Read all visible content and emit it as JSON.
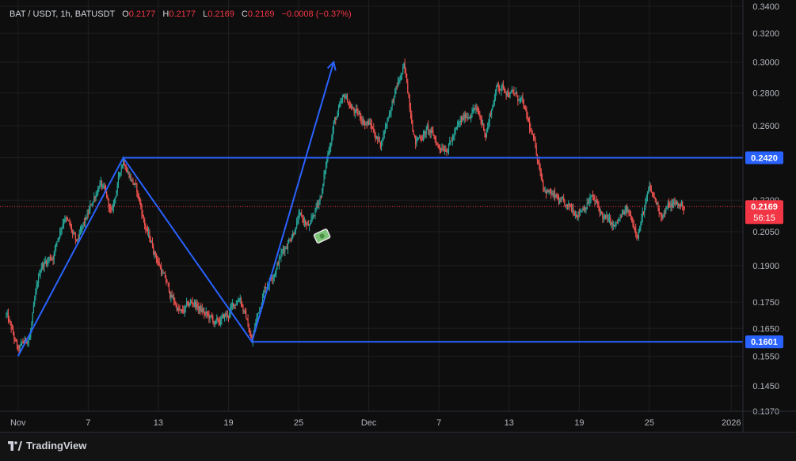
{
  "legend": {
    "symbol": "BAT / USDT, 1h, BATUSDT",
    "open_label": "O",
    "open_value": "0.2177",
    "high_label": "H",
    "high_value": "0.2177",
    "low_label": "L",
    "low_value": "0.2169",
    "close_label": "C",
    "close_value": "0.2169",
    "change": "−0.0008 (−0.37%)"
  },
  "footer": {
    "brand": "TradingView"
  },
  "colors": {
    "up": "#26a69a",
    "down": "#ef5350",
    "drawing": "#2962ff",
    "price_label": "#f23645",
    "level_label": "#2962ff",
    "grid": "#1f1f1f"
  },
  "icons": {
    "annotation": "money-bag-icon",
    "brand": "tradingview-logo-icon"
  },
  "chart_data": {
    "type": "candlestick",
    "interval": "1h",
    "y_scale": "log",
    "ylim": [
      0.137,
      0.34
    ],
    "y_ticks": [
      "0.3400",
      "0.3200",
      "0.3000",
      "0.2800",
      "0.2600",
      "0.2420",
      "0.2200",
      "0.2050",
      "0.1900",
      "0.1750",
      "0.1650",
      "0.1550",
      "0.1450",
      "0.1370"
    ],
    "x_ticks": [
      "Nov",
      "7",
      "13",
      "19",
      "25",
      "Dec",
      "7",
      "13",
      "19",
      "25",
      "2026"
    ],
    "x_tick_dates": [
      "2025-11-01",
      "2025-11-07",
      "2025-11-13",
      "2025-11-19",
      "2025-11-25",
      "2025-12-01",
      "2025-12-07",
      "2025-12-13",
      "2025-12-19",
      "2025-12-25",
      "2026-01-01"
    ],
    "x_range": [
      "2025-10-31",
      "2026-01-02"
    ],
    "series": [
      {
        "name": "BATUSDT"
      }
    ],
    "price_path": [
      [
        "2025-10-31",
        0.17
      ],
      [
        "2025-11-01",
        0.156
      ],
      [
        "2025-11-02",
        0.162
      ],
      [
        "2025-11-03",
        0.19
      ],
      [
        "2025-11-04",
        0.195
      ],
      [
        "2025-11-05",
        0.214
      ],
      [
        "2025-11-06",
        0.198
      ],
      [
        "2025-11-07",
        0.212
      ],
      [
        "2025-11-08",
        0.23
      ],
      [
        "2025-11-09",
        0.212
      ],
      [
        "2025-11-10",
        0.242
      ],
      [
        "2025-11-11",
        0.228
      ],
      [
        "2025-11-12",
        0.205
      ],
      [
        "2025-11-13",
        0.192
      ],
      [
        "2025-11-14",
        0.178
      ],
      [
        "2025-11-15",
        0.17
      ],
      [
        "2025-11-16",
        0.175
      ],
      [
        "2025-11-17",
        0.17
      ],
      [
        "2025-11-18",
        0.166
      ],
      [
        "2025-11-19",
        0.17
      ],
      [
        "2025-11-20",
        0.178
      ],
      [
        "2025-11-21",
        0.16
      ],
      [
        "2025-11-22",
        0.18
      ],
      [
        "2025-11-23",
        0.19
      ],
      [
        "2025-11-24",
        0.2
      ],
      [
        "2025-11-25",
        0.212
      ],
      [
        "2025-11-26",
        0.206
      ],
      [
        "2025-11-27",
        0.225
      ],
      [
        "2025-11-28",
        0.262
      ],
      [
        "2025-11-29",
        0.276
      ],
      [
        "2025-11-30",
        0.266
      ],
      [
        "2025-12-01",
        0.262
      ],
      [
        "2025-12-02",
        0.25
      ],
      [
        "2025-12-03",
        0.275
      ],
      [
        "2025-12-04",
        0.295
      ],
      [
        "2025-12-05",
        0.252
      ],
      [
        "2025-12-06",
        0.258
      ],
      [
        "2025-12-07",
        0.248
      ],
      [
        "2025-12-08",
        0.252
      ],
      [
        "2025-12-09",
        0.262
      ],
      [
        "2025-12-10",
        0.272
      ],
      [
        "2025-12-11",
        0.256
      ],
      [
        "2025-12-12",
        0.285
      ],
      [
        "2025-12-13",
        0.282
      ],
      [
        "2025-12-14",
        0.275
      ],
      [
        "2025-12-15",
        0.252
      ],
      [
        "2025-12-16",
        0.228
      ],
      [
        "2025-12-17",
        0.22
      ],
      [
        "2025-12-18",
        0.214
      ],
      [
        "2025-12-19",
        0.216
      ],
      [
        "2025-12-20",
        0.222
      ],
      [
        "2025-12-21",
        0.212
      ],
      [
        "2025-12-22",
        0.206
      ],
      [
        "2025-12-23",
        0.214
      ],
      [
        "2025-12-24",
        0.206
      ],
      [
        "2025-12-25",
        0.224
      ],
      [
        "2025-12-26",
        0.214
      ],
      [
        "2025-12-27",
        0.218
      ],
      [
        "2025-12-28",
        0.2169
      ]
    ],
    "drawings": {
      "zigzag": [
        [
          "2025-11-01",
          0.155
        ],
        [
          "2025-11-10",
          0.242
        ],
        [
          "2025-11-21",
          0.1601
        ],
        [
          "2025-11-28",
          0.3
        ]
      ],
      "levels": [
        {
          "start": "2025-11-10",
          "price": 0.242,
          "label": "0.2420"
        },
        {
          "start": "2025-11-21",
          "price": 0.1601,
          "label": "0.1601"
        }
      ],
      "current_price": {
        "price": 0.2169,
        "label": "0.2169",
        "countdown": "56:15"
      },
      "annotation": {
        "date": "2025-11-27",
        "price": 0.203
      }
    }
  }
}
